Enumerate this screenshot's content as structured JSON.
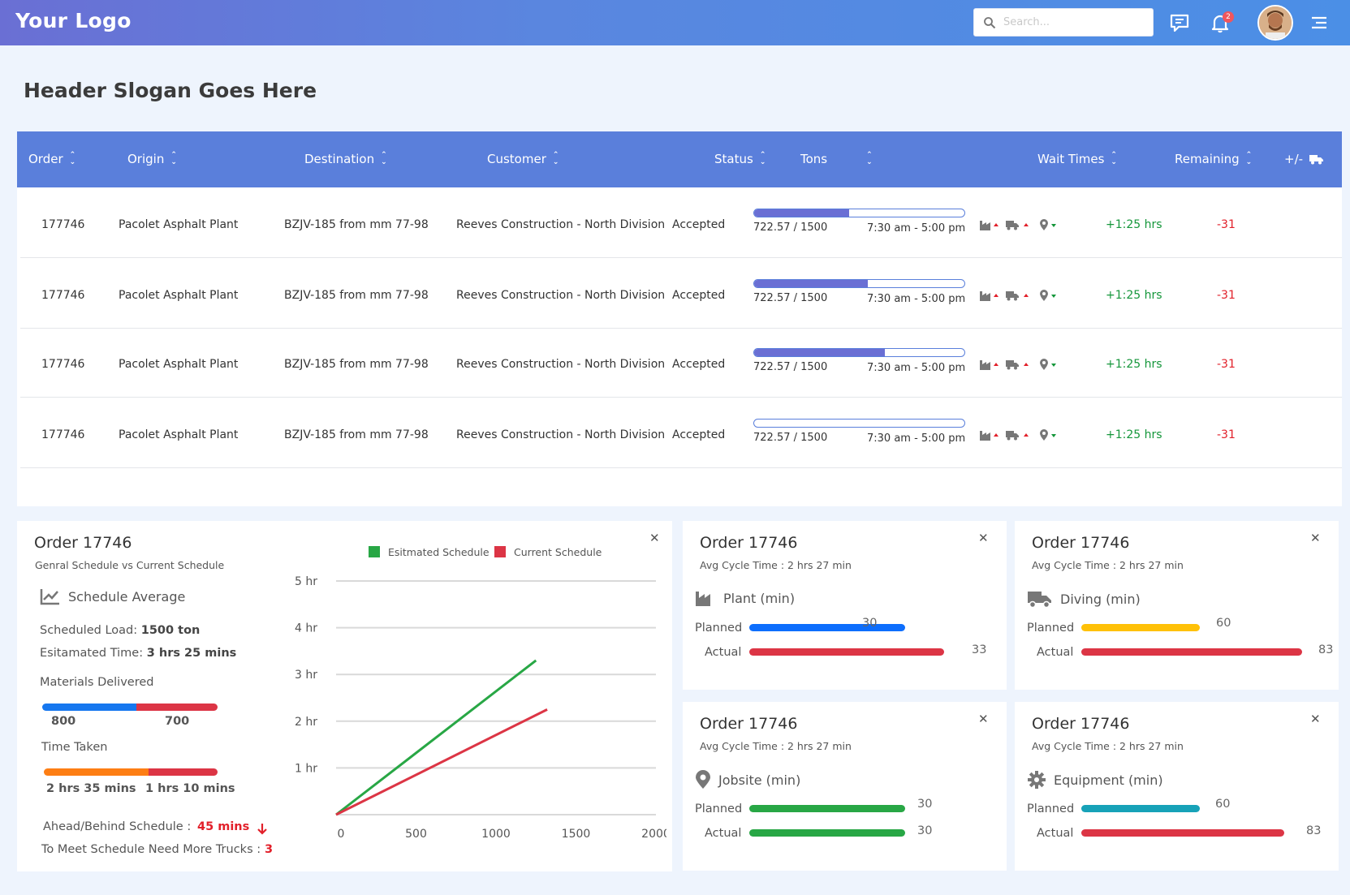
{
  "topbar": {
    "logo": "Your Logo",
    "search_placeholder": "Search...",
    "notification_count": "2"
  },
  "header": {
    "slogan": "Header Slogan Goes Here"
  },
  "table": {
    "columns": [
      "Order",
      "Origin",
      "Destination",
      "Customer",
      "Status",
      "Tons",
      "Wait Times",
      "Remaining",
      "+/-"
    ],
    "rows": [
      {
        "order": "177746",
        "origin": "Pacolet Asphalt Plant",
        "destination": "BZJV-185 from mm 77-98",
        "customer": "Reeves Construction - North Division",
        "status": "Accepted",
        "tons": "722.57 / 1500",
        "time_window": "7:30 am - 5:00 pm",
        "progress": 0.45,
        "remaining": "+1:25 hrs",
        "delta": "-31"
      },
      {
        "order": "177746",
        "origin": "Pacolet Asphalt Plant",
        "destination": "BZJV-185 from mm 77-98",
        "customer": "Reeves Construction - North Division",
        "status": "Accepted",
        "tons": "722.57 / 1500",
        "time_window": "7:30 am - 5:00 pm",
        "progress": 0.54,
        "remaining": "+1:25 hrs",
        "delta": "-31"
      },
      {
        "order": "177746",
        "origin": "Pacolet Asphalt Plant",
        "destination": "BZJV-185 from mm 77-98",
        "customer": "Reeves Construction - North Division",
        "status": "Accepted",
        "tons": "722.57 / 1500",
        "time_window": "7:30 am - 5:00 pm",
        "progress": 0.62,
        "remaining": "+1:25 hrs",
        "delta": "-31"
      },
      {
        "order": "177746",
        "origin": "Pacolet Asphalt Plant",
        "destination": "BZJV-185 from mm 77-98",
        "customer": "Reeves Construction - North Division",
        "status": "Accepted",
        "tons": "722.57 / 1500",
        "time_window": "7:30 am - 5:00 pm",
        "progress": 0.0,
        "remaining": "+1:25 hrs",
        "delta": "-31"
      }
    ]
  },
  "schedule_card": {
    "title": "Order 17746",
    "subtitle": "Genral Schedule vs Current Schedule",
    "section": "Schedule Average",
    "scheduled_load_label": "Scheduled Load:",
    "scheduled_load_value": "1500 ton",
    "est_time_label": "Esitamated Time:",
    "est_time_value": "3 hrs 25 mins",
    "materials_label": "Materials Delivered",
    "materials_a": "800",
    "materials_b": "700",
    "time_taken_label": "Time Taken",
    "time_a": "2 hrs 35 mins",
    "time_b": "1 hrs 10 mins",
    "ahead_label": "Ahead/Behind Schedule :",
    "ahead_value": "45 mins",
    "trucks_label": "To Meet Schedule Need More Trucks :",
    "trucks_value": "3"
  },
  "chart_data": {
    "type": "line",
    "title": "",
    "xlabel": "",
    "ylabel": "",
    "x_ticks": [
      "0",
      "500",
      "1000",
      "1500",
      "2000"
    ],
    "y_ticks": [
      "1 hr",
      "2 hr",
      "3 hr",
      "4 hr",
      "5 hr"
    ],
    "xlim": [
      0,
      2000
    ],
    "ylim": [
      0,
      5
    ],
    "legend_position": "top",
    "series": [
      {
        "name": "Esitmated Schedule",
        "color": "#28a745",
        "points": [
          [
            0,
            0
          ],
          [
            1250,
            3.3
          ]
        ]
      },
      {
        "name": "Current Schedule",
        "color": "#dc3545",
        "points": [
          [
            0,
            0
          ],
          [
            1320,
            2.25
          ]
        ]
      }
    ]
  },
  "metric_cards": [
    {
      "title": "Order 17746",
      "subtitle": "Avg Cycle Time : 2 hrs 27 min",
      "metric": "Plant (min)",
      "icon": "factory-icon",
      "planned_label": "Planned",
      "actual_label": "Actual",
      "planned": "30",
      "actual": "33",
      "planned_color": "#0d6efd",
      "actual_color": "#dc3545"
    },
    {
      "title": "Order 17746",
      "subtitle": "Avg Cycle Time : 2 hrs 27 min",
      "metric": "Diving (min)",
      "icon": "truck-icon",
      "planned_label": "Planned",
      "actual_label": "Actual",
      "planned": "60",
      "actual": "83",
      "planned_color": "#ffc107",
      "actual_color": "#dc3545"
    },
    {
      "title": "Order 17746",
      "subtitle": "Avg Cycle Time : 2 hrs 27 min",
      "metric": "Jobsite (min)",
      "icon": "location-pin-icon",
      "planned_label": "Planned",
      "actual_label": "Actual",
      "planned": "30",
      "actual": "30",
      "planned_color": "#28a745",
      "actual_color": "#28a745"
    },
    {
      "title": "Order 17746",
      "subtitle": "Avg Cycle Time : 2 hrs 27 min",
      "metric": "Equipment (min)",
      "icon": "gear-icon",
      "planned_label": "Planned",
      "actual_label": "Actual",
      "planned": "60",
      "actual": "83",
      "planned_color": "#17a2b8",
      "actual_color": "#dc3545"
    }
  ]
}
